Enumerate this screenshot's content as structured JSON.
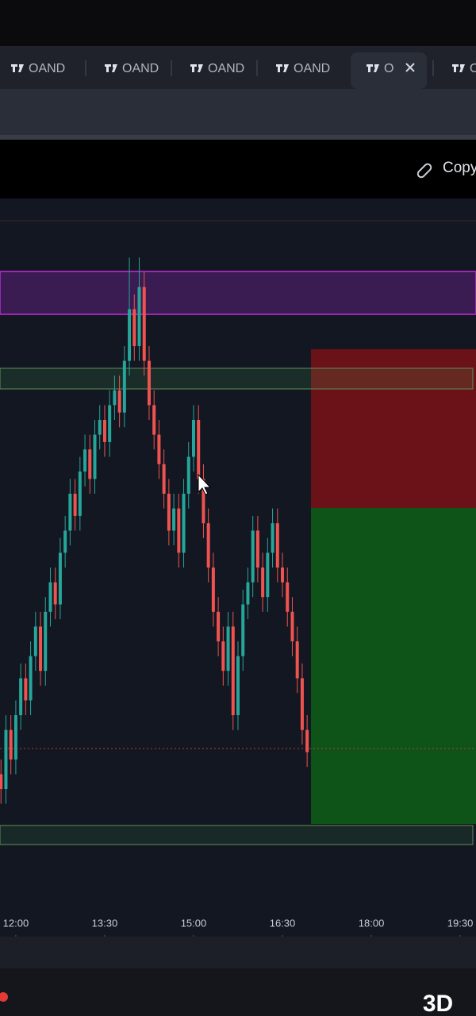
{
  "tabs": [
    {
      "label": "OAND"
    },
    {
      "label": "OAND"
    },
    {
      "label": "OAND"
    },
    {
      "label": "OAND"
    },
    {
      "label": "O",
      "active": true
    },
    {
      "label": "OAND"
    }
  ],
  "toolbar": {
    "copy": "Copy"
  },
  "watermark": "3D",
  "chart_data": {
    "type": "candlestick",
    "xlim": [
      704,
      1186
    ],
    "xticks": [
      {
        "value": 720,
        "label": "12:00"
      },
      {
        "value": 810,
        "label": "13:30"
      },
      {
        "value": 900,
        "label": "15:00"
      },
      {
        "value": 990,
        "label": "16:30"
      },
      {
        "value": 1080,
        "label": "18:00"
      },
      {
        "value": 1170,
        "label": "19:30"
      }
    ],
    "ylim": [
      0,
      100
    ],
    "up_color": "#26a69a",
    "down_color": "#ef5350",
    "x": [
      705,
      710,
      715,
      720,
      725,
      730,
      735,
      740,
      745,
      750,
      755,
      760,
      765,
      770,
      775,
      780,
      785,
      790,
      795,
      800,
      805,
      810,
      815,
      820,
      825,
      830,
      835,
      840,
      845,
      850,
      855,
      860,
      865,
      870,
      875,
      880,
      885,
      890,
      895,
      900,
      905,
      910,
      915,
      920,
      925,
      930,
      935,
      940,
      945,
      950,
      955,
      960,
      965,
      970,
      975,
      980,
      985,
      990,
      995,
      1000,
      1005,
      1010,
      1015
    ],
    "open": [
      22,
      20,
      28,
      24,
      30,
      35,
      32,
      38,
      42,
      36,
      44,
      48,
      45,
      52,
      55,
      60,
      57,
      63,
      66,
      62,
      68,
      70,
      67,
      72,
      74,
      71,
      78,
      85,
      80,
      88,
      78,
      72,
      68,
      64,
      60,
      55,
      58,
      52,
      60,
      65,
      70,
      62,
      56,
      50,
      44,
      40,
      36,
      42,
      30,
      38,
      45,
      48,
      55,
      50,
      46,
      52,
      56,
      50,
      48,
      44,
      40,
      35,
      28
    ],
    "high": [
      24,
      30,
      30,
      32,
      37,
      37,
      40,
      44,
      44,
      46,
      50,
      50,
      54,
      57,
      62,
      62,
      65,
      68,
      68,
      70,
      72,
      72,
      74,
      76,
      76,
      80,
      92,
      87,
      92,
      90,
      80,
      74,
      70,
      66,
      62,
      60,
      60,
      62,
      67,
      72,
      72,
      64,
      58,
      52,
      46,
      42,
      44,
      44,
      40,
      47,
      50,
      57,
      57,
      52,
      54,
      58,
      58,
      52,
      50,
      46,
      42,
      37,
      30
    ],
    "low": [
      18,
      18,
      22,
      22,
      28,
      30,
      30,
      36,
      34,
      34,
      42,
      43,
      43,
      50,
      53,
      55,
      55,
      61,
      60,
      60,
      66,
      65,
      65,
      70,
      69,
      69,
      76,
      78,
      78,
      76,
      70,
      66,
      62,
      58,
      53,
      53,
      50,
      50,
      58,
      63,
      60,
      54,
      48,
      42,
      38,
      34,
      34,
      28,
      28,
      36,
      43,
      46,
      48,
      44,
      44,
      50,
      48,
      46,
      42,
      38,
      33,
      26,
      23
    ],
    "close": [
      20,
      28,
      24,
      30,
      35,
      32,
      38,
      42,
      36,
      44,
      48,
      45,
      52,
      55,
      60,
      57,
      63,
      66,
      62,
      68,
      70,
      67,
      72,
      74,
      71,
      78,
      85,
      80,
      88,
      78,
      72,
      68,
      64,
      60,
      55,
      58,
      52,
      60,
      65,
      70,
      62,
      56,
      50,
      44,
      40,
      36,
      42,
      30,
      38,
      45,
      48,
      55,
      50,
      46,
      52,
      56,
      50,
      48,
      44,
      40,
      35,
      28,
      25
    ]
  }
}
